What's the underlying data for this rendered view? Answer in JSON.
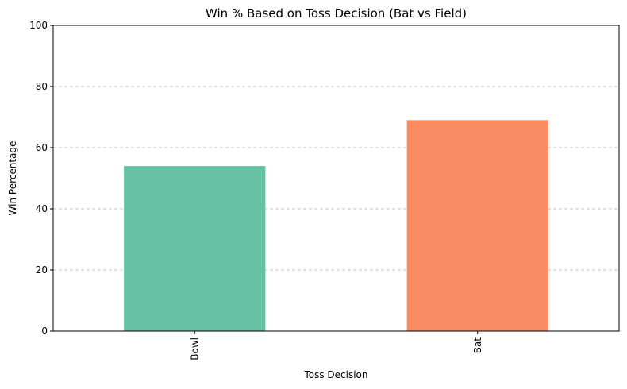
{
  "chart_data": {
    "type": "bar",
    "title": "Win % Based on Toss Decision (Bat vs Field)",
    "xlabel": "Toss Decision",
    "ylabel": "Win Percentage",
    "categories": [
      "Bowl",
      "Bat"
    ],
    "values": [
      54,
      69
    ],
    "colors": [
      "#66c2a5",
      "#fc8d62"
    ],
    "ylim": [
      0,
      100
    ],
    "yticks": [
      0,
      20,
      40,
      60,
      80,
      100
    ],
    "grid": "y-dashed",
    "legend": "none"
  }
}
